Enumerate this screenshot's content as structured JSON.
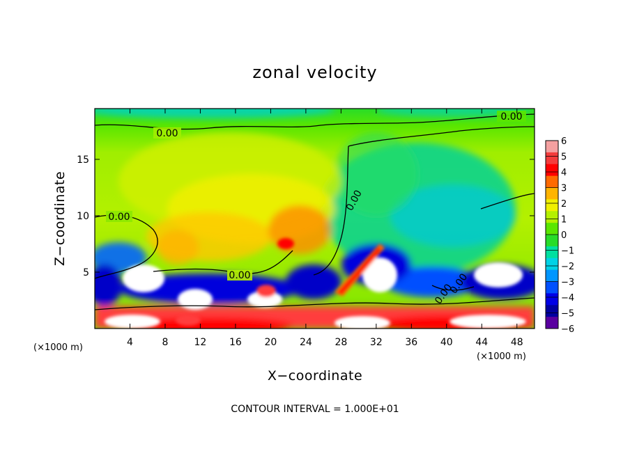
{
  "chart_data": {
    "type": "heatmap",
    "title": "zonal velocity",
    "xlabel": "X−coordinate",
    "ylabel": "Z−coordinate",
    "x_unit_label": "(×1000 m)",
    "x_unit_label_right": "(×1000 m)",
    "xlim": [
      0,
      50
    ],
    "ylim": [
      0,
      19.5
    ],
    "xticks": [
      4,
      8,
      12,
      16,
      20,
      24,
      28,
      32,
      36,
      40,
      44,
      48
    ],
    "yticks": [
      5,
      10,
      15
    ],
    "colorbar": {
      "ticks": [
        "6",
        "5",
        "4",
        "3",
        "2",
        "1",
        "0",
        "−1",
        "−2",
        "−3",
        "−4",
        "−5",
        "−6"
      ],
      "colors": [
        "#f4a0a0",
        "#f43c3c",
        "#ff0000",
        "#ff6a00",
        "#ffb400",
        "#f0f000",
        "#b4f000",
        "#5ae600",
        "#28dc28",
        "#00e0a0",
        "#00d2e6",
        "#0096ff",
        "#0050ff",
        "#0000e6",
        "#0000a0",
        "#5a00a0"
      ]
    },
    "contour_labels": [
      "0.00",
      "0.00",
      "0.00",
      "0.00",
      "0.00",
      "0.00",
      "0.00"
    ],
    "footnote": "CONTOUR INTERVAL = 1.000E+01"
  }
}
